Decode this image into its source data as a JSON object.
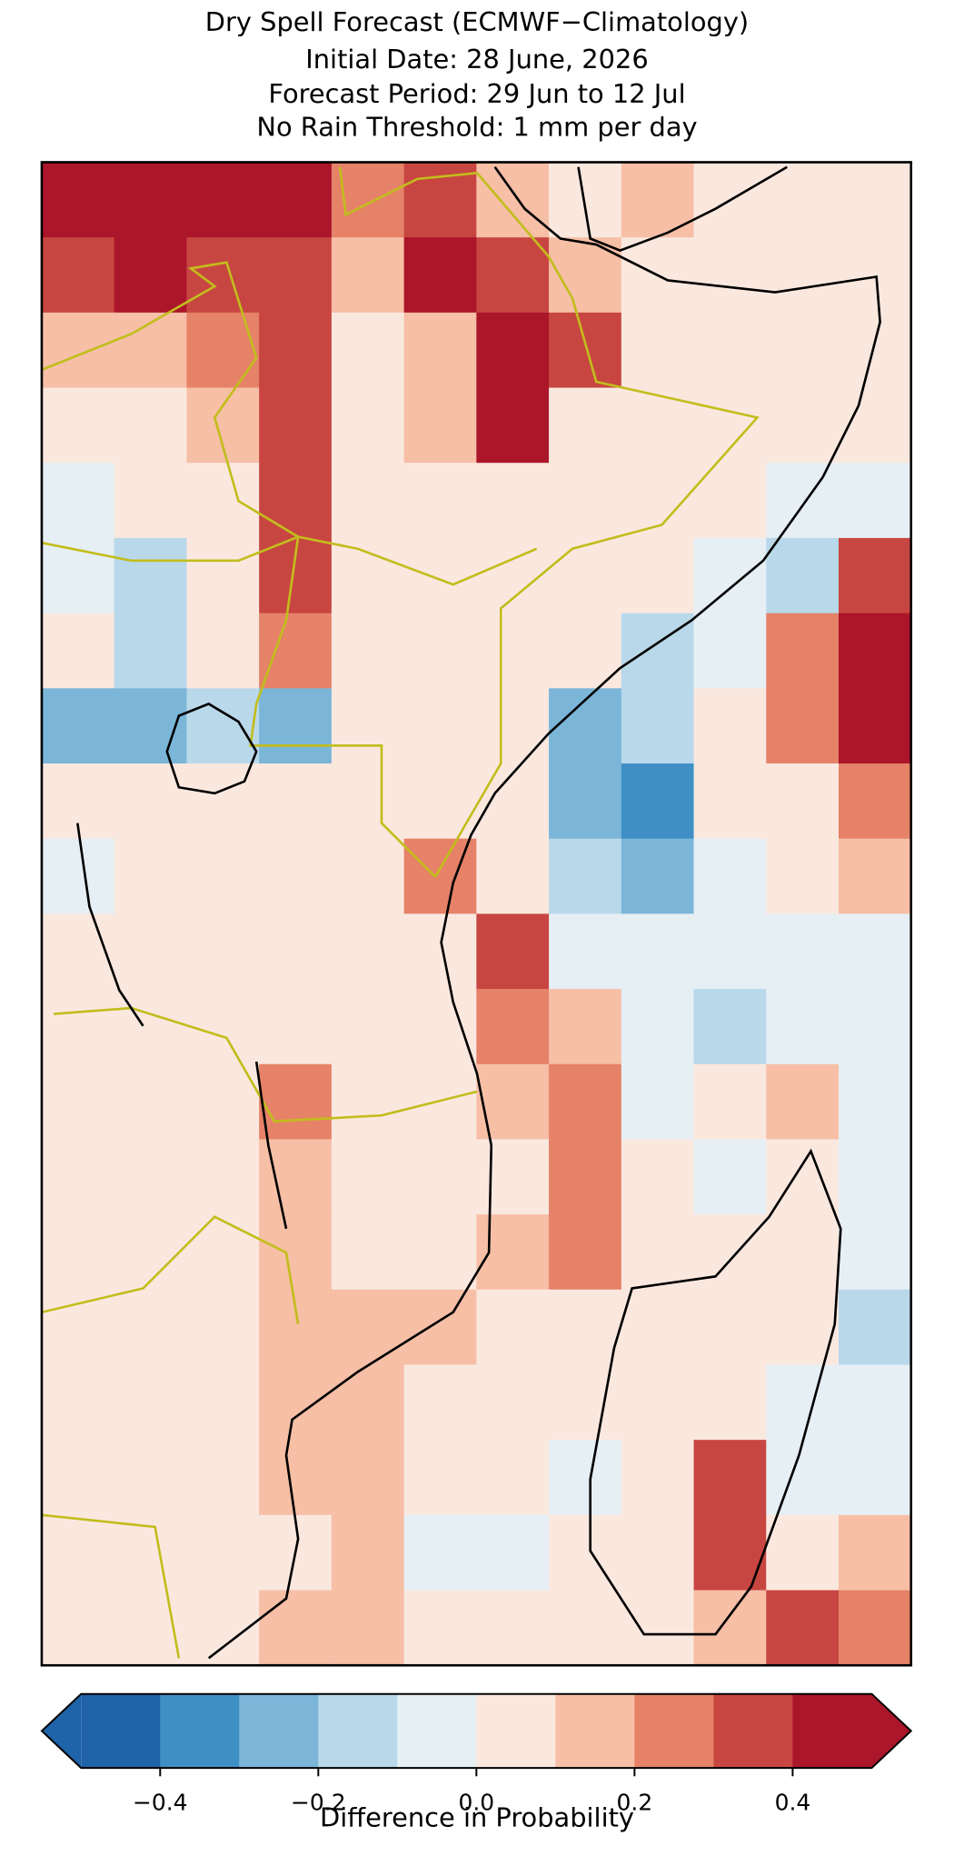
{
  "chart_data": {
    "type": "heatmap",
    "title": "Dry Spell Forecast (ECMWF−Climatology)",
    "subtitles": [
      "Initial Date: 28 June, 2026",
      "Forecast Period: 29 Jun to 12 Jul",
      "No Rain Threshold: 1 mm per day"
    ],
    "values": [
      [
        0.45,
        0.45,
        0.45,
        0.45,
        0.25,
        0.35,
        0.15,
        0.05,
        0.15,
        0.05,
        0.05,
        0.05
      ],
      [
        0.35,
        0.45,
        0.35,
        0.35,
        0.15,
        0.45,
        0.35,
        0.15,
        0.05,
        0.05,
        0.05,
        0.05
      ],
      [
        0.15,
        0.15,
        0.25,
        0.35,
        0.05,
        0.15,
        0.45,
        0.35,
        0.05,
        0.05,
        0.05,
        0.05
      ],
      [
        0.05,
        0.05,
        0.15,
        0.35,
        0.05,
        0.15,
        0.45,
        0.05,
        0.05,
        0.05,
        0.05,
        0.05
      ],
      [
        -0.05,
        0.05,
        0.05,
        0.35,
        0.05,
        0.05,
        0.05,
        0.05,
        0.05,
        0.05,
        -0.05,
        -0.05
      ],
      [
        -0.05,
        -0.15,
        0.05,
        0.35,
        0.05,
        0.05,
        0.05,
        0.05,
        0.05,
        -0.05,
        -0.15,
        0.35
      ],
      [
        0.05,
        -0.15,
        0.05,
        0.25,
        0.05,
        0.05,
        0.05,
        0.05,
        -0.15,
        -0.05,
        0.25,
        0.45
      ],
      [
        -0.25,
        -0.25,
        -0.15,
        -0.25,
        0.05,
        0.05,
        0.05,
        -0.25,
        -0.15,
        0.05,
        0.25,
        0.45
      ],
      [
        0.05,
        0.05,
        0.05,
        0.05,
        0.05,
        0.05,
        0.05,
        -0.25,
        -0.35,
        0.05,
        0.05,
        0.25
      ],
      [
        -0.05,
        0.05,
        0.05,
        0.05,
        0.05,
        0.25,
        0.05,
        -0.15,
        -0.25,
        -0.05,
        0.05,
        0.15
      ],
      [
        0.05,
        0.05,
        0.05,
        0.05,
        0.05,
        0.05,
        0.35,
        -0.05,
        -0.05,
        -0.05,
        -0.05,
        -0.05
      ],
      [
        0.05,
        0.05,
        0.05,
        0.05,
        0.05,
        0.05,
        0.25,
        0.15,
        -0.05,
        -0.15,
        -0.05,
        -0.05
      ],
      [
        0.05,
        0.05,
        0.05,
        0.25,
        0.05,
        0.05,
        0.15,
        0.25,
        -0.05,
        0.05,
        0.15,
        -0.05
      ],
      [
        0.05,
        0.05,
        0.05,
        0.15,
        0.05,
        0.05,
        0.05,
        0.25,
        0.05,
        -0.05,
        0.05,
        -0.05
      ],
      [
        0.05,
        0.05,
        0.05,
        0.15,
        0.05,
        0.05,
        0.15,
        0.25,
        0.05,
        0.05,
        0.05,
        -0.05
      ],
      [
        0.05,
        0.05,
        0.05,
        0.15,
        0.15,
        0.15,
        0.05,
        0.05,
        0.05,
        0.05,
        0.05,
        -0.15
      ],
      [
        0.05,
        0.05,
        0.05,
        0.15,
        0.15,
        0.05,
        0.05,
        0.05,
        0.05,
        0.05,
        -0.05,
        -0.05
      ],
      [
        0.05,
        0.05,
        0.05,
        0.15,
        0.15,
        0.05,
        0.05,
        -0.05,
        0.05,
        0.35,
        -0.05,
        -0.05
      ],
      [
        0.05,
        0.05,
        0.05,
        0.05,
        0.15,
        -0.05,
        -0.05,
        0.05,
        0.05,
        0.35,
        0.05,
        0.15
      ],
      [
        0.05,
        0.05,
        0.05,
        0.15,
        0.15,
        0.05,
        0.05,
        0.05,
        0.05,
        0.15,
        0.35,
        0.25
      ]
    ],
    "colorbar": {
      "label": "Difference in Probability",
      "boundaries": [
        -0.5,
        -0.4,
        -0.3,
        -0.2,
        -0.1,
        0,
        0.1,
        0.2,
        0.3,
        0.4,
        0.5
      ],
      "colors": [
        "#1f63a8",
        "#3f8fc5",
        "#7bb6d9",
        "#b9d8ea",
        "#e6eff4",
        "#fae8df",
        "#f6bfa6",
        "#e58268",
        "#c84641",
        "#ab162a"
      ],
      "extend": "both",
      "ticks": [
        {
          "value": -0.4,
          "label": "−0.4"
        },
        {
          "value": -0.2,
          "label": "−0.2"
        },
        {
          "value": 0,
          "label": "0.0"
        },
        0.2,
        0.4
      ]
    }
  }
}
